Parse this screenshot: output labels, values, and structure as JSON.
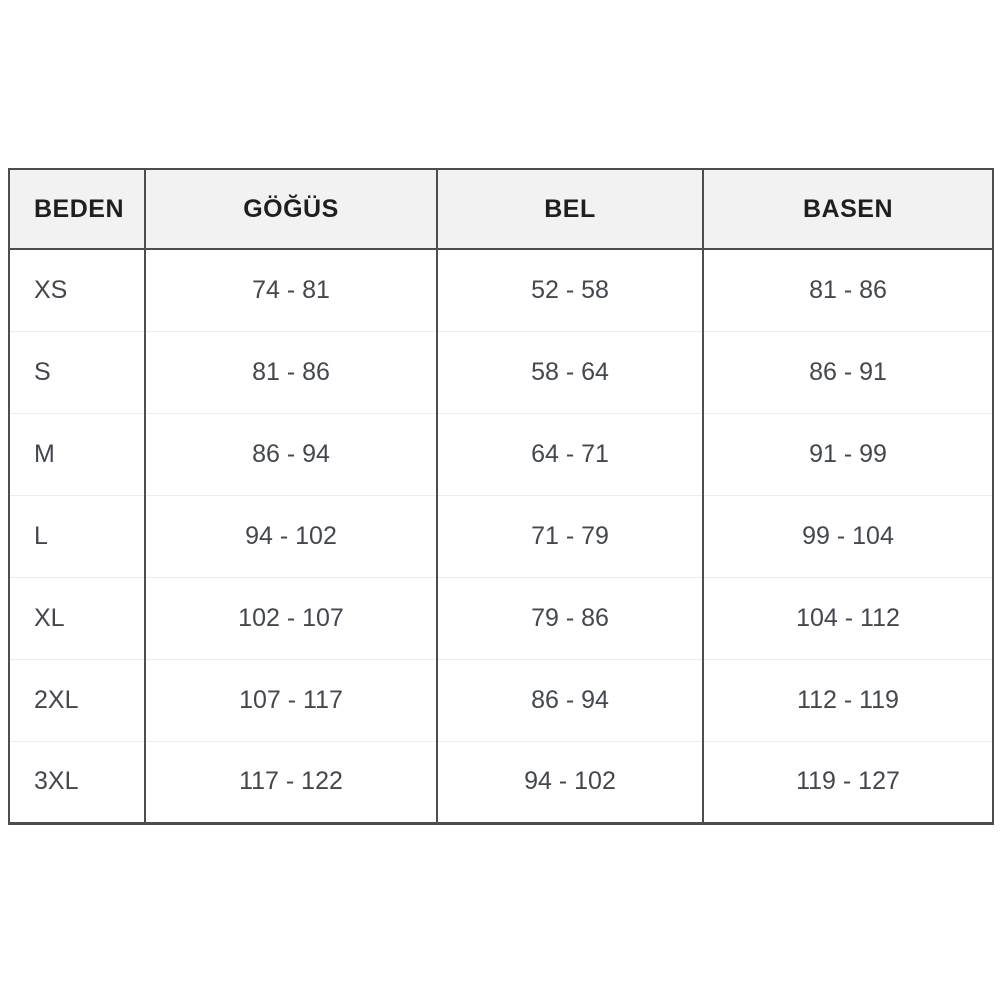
{
  "chart_data": {
    "type": "table",
    "title": "",
    "columns": [
      "BEDEN",
      "GÖĞÜS",
      "BEL",
      "BASEN"
    ],
    "rows": [
      [
        "XS",
        "74 - 81",
        "52 - 58",
        "81 - 86"
      ],
      [
        "S",
        "81 - 86",
        "58 - 64",
        "86 - 91"
      ],
      [
        "M",
        "86 - 94",
        "64 - 71",
        "91 - 99"
      ],
      [
        "L",
        "94 - 102",
        "71 - 79",
        "99 - 104"
      ],
      [
        "XL",
        "102 - 107",
        "79 - 86",
        "104 - 112"
      ],
      [
        "2XL",
        "107 - 117",
        "86 - 94",
        "112 - 119"
      ],
      [
        "3XL",
        "117 - 122",
        "94 - 102",
        "119 - 127"
      ]
    ],
    "layout": {
      "legend": "none",
      "grid": "table-borders",
      "header_align": "first column left, others center"
    },
    "colors": {
      "header_background": "#f2f2f2",
      "outer_border": "#4d4d4d",
      "column_divider": "#4d4d4d",
      "row_divider": "#ececec",
      "header_text": "#1f1f1f",
      "cell_text": "#43474e",
      "page_background": "#ffffff"
    }
  }
}
